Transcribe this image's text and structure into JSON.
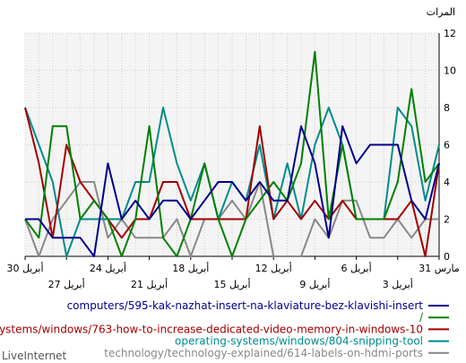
{
  "chart_data": {
    "type": "line",
    "ylabel": "المرات",
    "ylim": [
      0,
      12
    ],
    "y_ticks": [
      "0",
      "2",
      "4",
      "6",
      "8",
      "10",
      "12"
    ],
    "x_axis_direction": "right-to-left",
    "x_tick_labels_row1": [
      "31 مارس",
      "6 أبريل",
      "12 أبريل",
      "18 أبريل",
      "24 أبريل",
      "30 أبريل"
    ],
    "x_tick_labels_row2": [
      "3 أبريل",
      "9 أبريل",
      "15 أبريل",
      "21 أبريل",
      "27 أبريل"
    ],
    "grid": true,
    "x": [
      "31 مارس",
      "1 أبريل",
      "2 أبريل",
      "3 أبريل",
      "4 أبريل",
      "5 أبريل",
      "6 أبريل",
      "7 أبريل",
      "8 أبريل",
      "9 أبريل",
      "10 أبريل",
      "11 أبريل",
      "12 أبريل",
      "13 أبريل",
      "14 أبريل",
      "15 أبريل",
      "16 أبريل",
      "17 أبريل",
      "18 أبريل",
      "19 أبريل",
      "20 أبريل",
      "21 أبريل",
      "22 أبريل",
      "23 أبريل",
      "24 أبريل",
      "25 أبريل",
      "26 أبريل",
      "27 أبريل",
      "28 أبريل",
      "29 أبريل",
      "30 أبريل"
    ],
    "series": [
      {
        "name": "computers/595-kak-nazhat-insert-na-klaviature-bez-klavishi-insert",
        "color": "#00008b",
        "values": [
          5,
          2,
          3,
          6,
          6,
          6,
          5,
          7,
          1,
          5,
          7,
          3,
          3,
          4,
          3,
          4,
          4,
          3,
          2,
          3,
          3,
          2,
          3,
          2,
          5,
          0,
          1,
          1,
          1,
          2,
          2
        ]
      },
      {
        "name": "/",
        "color": "#008000",
        "values": [
          5,
          4,
          9,
          4,
          2,
          2,
          2,
          6,
          2,
          11,
          5,
          3,
          4,
          3,
          2,
          0,
          2,
          5,
          2,
          0,
          1,
          7,
          2,
          0,
          2,
          3,
          2,
          7,
          7,
          1,
          2
        ]
      },
      {
        "name": "-systems/windows/763-how-to-increase-dedicated-video-memory-in-windows-10",
        "color": "#a00000",
        "values": [
          5,
          0,
          3,
          2,
          2,
          2,
          2,
          3,
          2,
          3,
          2,
          3,
          2,
          7,
          2,
          2,
          2,
          2,
          2,
          4,
          4,
          2,
          2,
          1,
          2,
          3,
          4,
          6,
          1,
          5,
          8
        ]
      },
      {
        "name": "operating-systems/windows/804-snipping-tool",
        "color": "#008b8b",
        "values": [
          6,
          3,
          7,
          8,
          2,
          2,
          2,
          6,
          8,
          6,
          2,
          5,
          2,
          6,
          3,
          4,
          2,
          5,
          3,
          5,
          8,
          4,
          4,
          2,
          2,
          2,
          2,
          0,
          4,
          6,
          8
        ]
      },
      {
        "name": "technology/technology-explained/614-labels-on-hdmi-ports",
        "color": "#888888",
        "values": [
          2,
          2,
          1,
          2,
          1,
          1,
          3,
          3,
          1,
          2,
          0,
          0,
          0,
          4,
          2,
          3,
          2,
          2,
          0,
          2,
          1,
          1,
          1,
          2,
          1,
          4,
          4,
          3,
          2,
          0,
          2
        ]
      }
    ]
  },
  "legend": {
    "entries": [
      {
        "label": "computers/595-kak-nazhat-insert-na-klaviature-bez-klavishi-insert",
        "color": "#00008b"
      },
      {
        "label": "/",
        "color": "#008000"
      },
      {
        "label": "-systems/windows/763-how-to-increase-dedicated-video-memory-in-windows-10",
        "color": "#a00000"
      },
      {
        "label": "operating-systems/windows/804-snipping-tool",
        "color": "#008b8b"
      },
      {
        "label": "technology/technology-explained/614-labels-on-hdmi-ports",
        "color": "#888888"
      }
    ]
  },
  "brand": "LiveInternet"
}
